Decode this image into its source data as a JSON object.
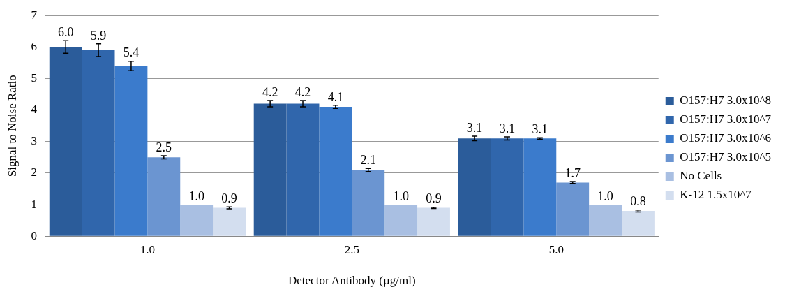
{
  "chart_data": {
    "type": "bar",
    "xlabel": "Detector Antibody (µg/ml)",
    "ylabel": "Signal to Noise Ratio",
    "categories": [
      "1.0",
      "2.5",
      "5.0"
    ],
    "series": [
      {
        "name": "O157:H7 3.0x10^8",
        "color": "#2b5c9a",
        "values": [
          6.0,
          4.2,
          3.1
        ],
        "value_labels": [
          "6.0",
          "4.2",
          "3.1"
        ],
        "errors": [
          0.2,
          0.1,
          0.07
        ]
      },
      {
        "name": "O157:H7 3.0x10^7",
        "color": "#3066ac",
        "values": [
          5.9,
          4.2,
          3.1
        ],
        "value_labels": [
          "5.9",
          "4.2",
          "3.1"
        ],
        "errors": [
          0.2,
          0.1,
          0.05
        ]
      },
      {
        "name": "O157:H7 3.0x10^6",
        "color": "#3b7bcc",
        "values": [
          5.4,
          4.1,
          3.1
        ],
        "value_labels": [
          "5.4",
          "4.1",
          "3.1"
        ],
        "errors": [
          0.15,
          0.05,
          0.02
        ]
      },
      {
        "name": "O157:H7 3.0x10^5",
        "color": "#6b95d1",
        "values": [
          2.5,
          2.1,
          1.7
        ],
        "value_labels": [
          "2.5",
          "2.1",
          "1.7"
        ],
        "errors": [
          0.05,
          0.05,
          0.03
        ]
      },
      {
        "name": "No Cells",
        "color": "#a9bfe2",
        "values": [
          1.0,
          1.0,
          1.0
        ],
        "value_labels": [
          "1.0",
          "1.0",
          "1.0"
        ]
      },
      {
        "name": "K-12 1.5x10^7",
        "color": "#d3deef",
        "values": [
          0.9,
          0.9,
          0.8
        ],
        "value_labels": [
          "0.9",
          "0.9",
          "0.8"
        ],
        "errors": [
          0.03,
          0.02,
          0.03
        ]
      }
    ],
    "ylim": [
      0,
      7
    ],
    "yticks": [
      0,
      1,
      2,
      3,
      4,
      5,
      6,
      7
    ],
    "grid": "y",
    "legend": "right"
  }
}
